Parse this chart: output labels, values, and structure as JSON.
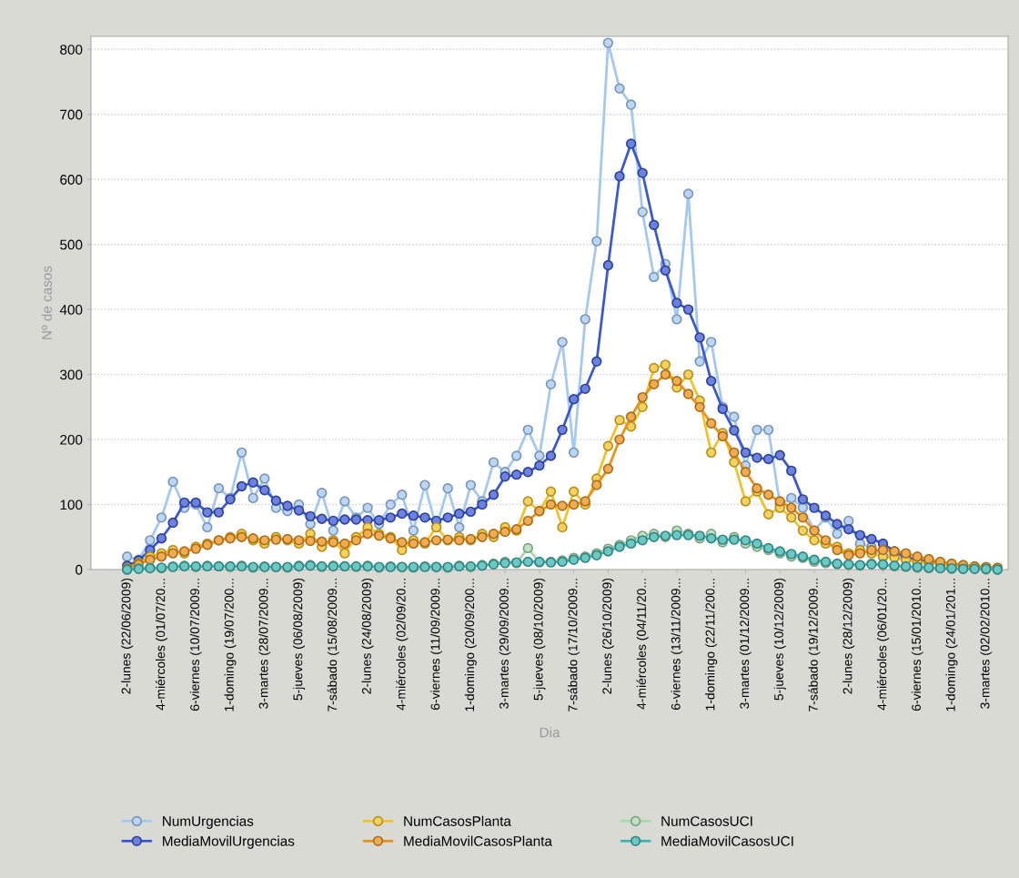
{
  "chart_data": {
    "type": "line",
    "xlabel": "Dia",
    "ylabel": "Nº de casos",
    "categories": [
      "2-lunes (22/06/2009)",
      null,
      null,
      "4-miércoles (01/07/20...",
      null,
      null,
      "6-viernes (10/07/2009...",
      null,
      null,
      "1-domingo (19/07/200...",
      null,
      null,
      "3-martes (28/07/2009...",
      null,
      null,
      "5-jueves (06/08/2009)",
      null,
      null,
      "7-sábado (15/08/2009...",
      null,
      null,
      "2-lunes (24/08/2009)",
      null,
      null,
      "4-miércoles (02/09/20...",
      null,
      null,
      "6-viernes (11/09/2009...",
      null,
      null,
      "1-domingo (20/09/200...",
      null,
      null,
      "3-martes (29/09/2009...",
      null,
      null,
      "5-jueves (08/10/2009)",
      null,
      null,
      "7-sábado (17/10/2009...",
      null,
      null,
      "2-lunes (26/10/2009)",
      null,
      null,
      "4-miércoles (04/11/20...",
      null,
      null,
      "6-viernes (13/11/2009...",
      null,
      null,
      "1-domingo (22/11/200...",
      null,
      null,
      "3-martes (01/12/2009...",
      null,
      null,
      "5-jueves (10/12/2009)",
      null,
      null,
      "7-sábado (19/12/2009...",
      null,
      null,
      "2-lunes (28/12/2009)",
      null,
      null,
      "4-miércoles (06/01/20...",
      null,
      null,
      "6-viernes (15/01/2010...",
      null,
      null,
      "1-domingo (24/01/201...",
      null,
      null,
      "3-martes (02/02/2010...",
      null
    ],
    "series": [
      {
        "name": "NumUrgencias",
        "color": "#a4c8f0",
        "values": [
          20,
          15,
          45,
          80,
          135,
          95,
          100,
          65,
          125,
          110,
          180,
          110,
          140,
          95,
          90,
          100,
          70,
          118,
          60,
          105,
          80,
          95,
          70,
          100,
          115,
          60,
          130,
          65,
          125,
          65,
          130,
          105,
          165,
          150,
          175,
          215,
          175,
          285,
          350,
          180,
          385,
          505,
          810,
          740,
          715,
          550,
          450,
          470,
          385,
          578,
          320,
          350,
          250,
          235,
          160,
          215,
          215,
          100,
          110,
          95,
          60,
          80,
          55,
          75,
          40,
          35,
          20,
          25,
          15,
          10,
          null,
          null,
          null,
          null,
          null,
          null,
          null
        ]
      },
      {
        "name": "MediaMovilUrgencias",
        "color": "#3c58d0",
        "values": [
          6,
          14,
          30,
          48,
          72,
          103,
          103,
          88,
          88,
          108,
          128,
          134,
          122,
          106,
          98,
          91,
          82,
          78,
          75,
          77,
          77,
          76,
          76,
          80,
          86,
          83,
          80,
          75,
          80,
          86,
          89,
          100,
          115,
          143,
          146,
          150,
          160,
          175,
          215,
          262,
          278,
          320,
          468,
          605,
          655,
          610,
          530,
          460,
          410,
          400,
          357,
          290,
          247,
          214,
          180,
          172,
          170,
          176,
          152,
          108,
          95,
          83,
          70,
          62,
          53,
          47,
          40,
          28,
          19,
          15,
          12,
          9,
          null,
          null,
          null,
          null,
          null
        ]
      },
      {
        "name": "NumCasosPlanta",
        "color": "#f2c22a",
        "values": [
          2,
          10,
          20,
          25,
          30,
          25,
          35,
          40,
          45,
          50,
          55,
          45,
          40,
          50,
          45,
          40,
          55,
          35,
          45,
          25,
          50,
          65,
          55,
          50,
          30,
          45,
          40,
          65,
          45,
          50,
          45,
          55,
          50,
          65,
          60,
          105,
          90,
          120,
          65,
          120,
          100,
          140,
          190,
          230,
          220,
          250,
          310,
          315,
          280,
          300,
          260,
          180,
          210,
          165,
          105,
          120,
          85,
          95,
          80,
          60,
          45,
          40,
          35,
          25,
          30,
          25,
          20,
          18,
          15,
          12,
          10,
          8,
          6,
          5,
          4,
          3,
          2
        ]
      },
      {
        "name": "MediaMovilCasosPlanta",
        "color": "#e8911c",
        "values": [
          2,
          8,
          15,
          20,
          25,
          28,
          32,
          38,
          45,
          48,
          50,
          48,
          45,
          46,
          47,
          45,
          44,
          43,
          42,
          40,
          45,
          55,
          52,
          48,
          42,
          40,
          42,
          45,
          46,
          45,
          47,
          50,
          55,
          58,
          62,
          75,
          90,
          100,
          98,
          100,
          105,
          130,
          155,
          200,
          235,
          265,
          285,
          300,
          290,
          270,
          250,
          225,
          205,
          180,
          150,
          125,
          115,
          105,
          95,
          80,
          60,
          45,
          30,
          22,
          25,
          30,
          30,
          28,
          25,
          20,
          16,
          12,
          9,
          7,
          5,
          4,
          3
        ]
      },
      {
        "name": "NumCasosUCI",
        "color": "#a8d8b0",
        "values": [
          0,
          2,
          3,
          2,
          5,
          6,
          4,
          6,
          5,
          4,
          6,
          3,
          5,
          4,
          3,
          6,
          7,
          4,
          6,
          5,
          4,
          6,
          3,
          5,
          4,
          3,
          5,
          4,
          3,
          6,
          4,
          7,
          9,
          12,
          10,
          33,
          11,
          12,
          14,
          18,
          20,
          25,
          32,
          38,
          45,
          52,
          55,
          50,
          60,
          55,
          48,
          55,
          42,
          50,
          40,
          35,
          30,
          25,
          20,
          18,
          12,
          10,
          8,
          7,
          6,
          9,
          7,
          5,
          4,
          3,
          2,
          2,
          1,
          1,
          1,
          0,
          0
        ]
      },
      {
        "name": "MediaMovilCasosUCI",
        "color": "#3fb4b0",
        "values": [
          0,
          1,
          2,
          3,
          4,
          5,
          5,
          5,
          5,
          5,
          5,
          4,
          4,
          4,
          4,
          5,
          6,
          5,
          5,
          5,
          5,
          5,
          4,
          4,
          4,
          4,
          4,
          4,
          4,
          5,
          5,
          6,
          8,
          10,
          11,
          12,
          12,
          11,
          12,
          15,
          18,
          22,
          28,
          35,
          40,
          45,
          50,
          52,
          53,
          53,
          52,
          48,
          46,
          46,
          45,
          40,
          33,
          28,
          24,
          20,
          15,
          12,
          9,
          8,
          7,
          8,
          8,
          6,
          5,
          4,
          3,
          2,
          2,
          1,
          1,
          1,
          0
        ]
      }
    ],
    "ylim": [
      0,
      820
    ],
    "yticks": [
      0,
      100,
      200,
      300,
      400,
      500,
      600,
      700,
      800
    ],
    "grid": "y",
    "legend": "bottom",
    "marker": "circle",
    "line_style": "solid"
  }
}
